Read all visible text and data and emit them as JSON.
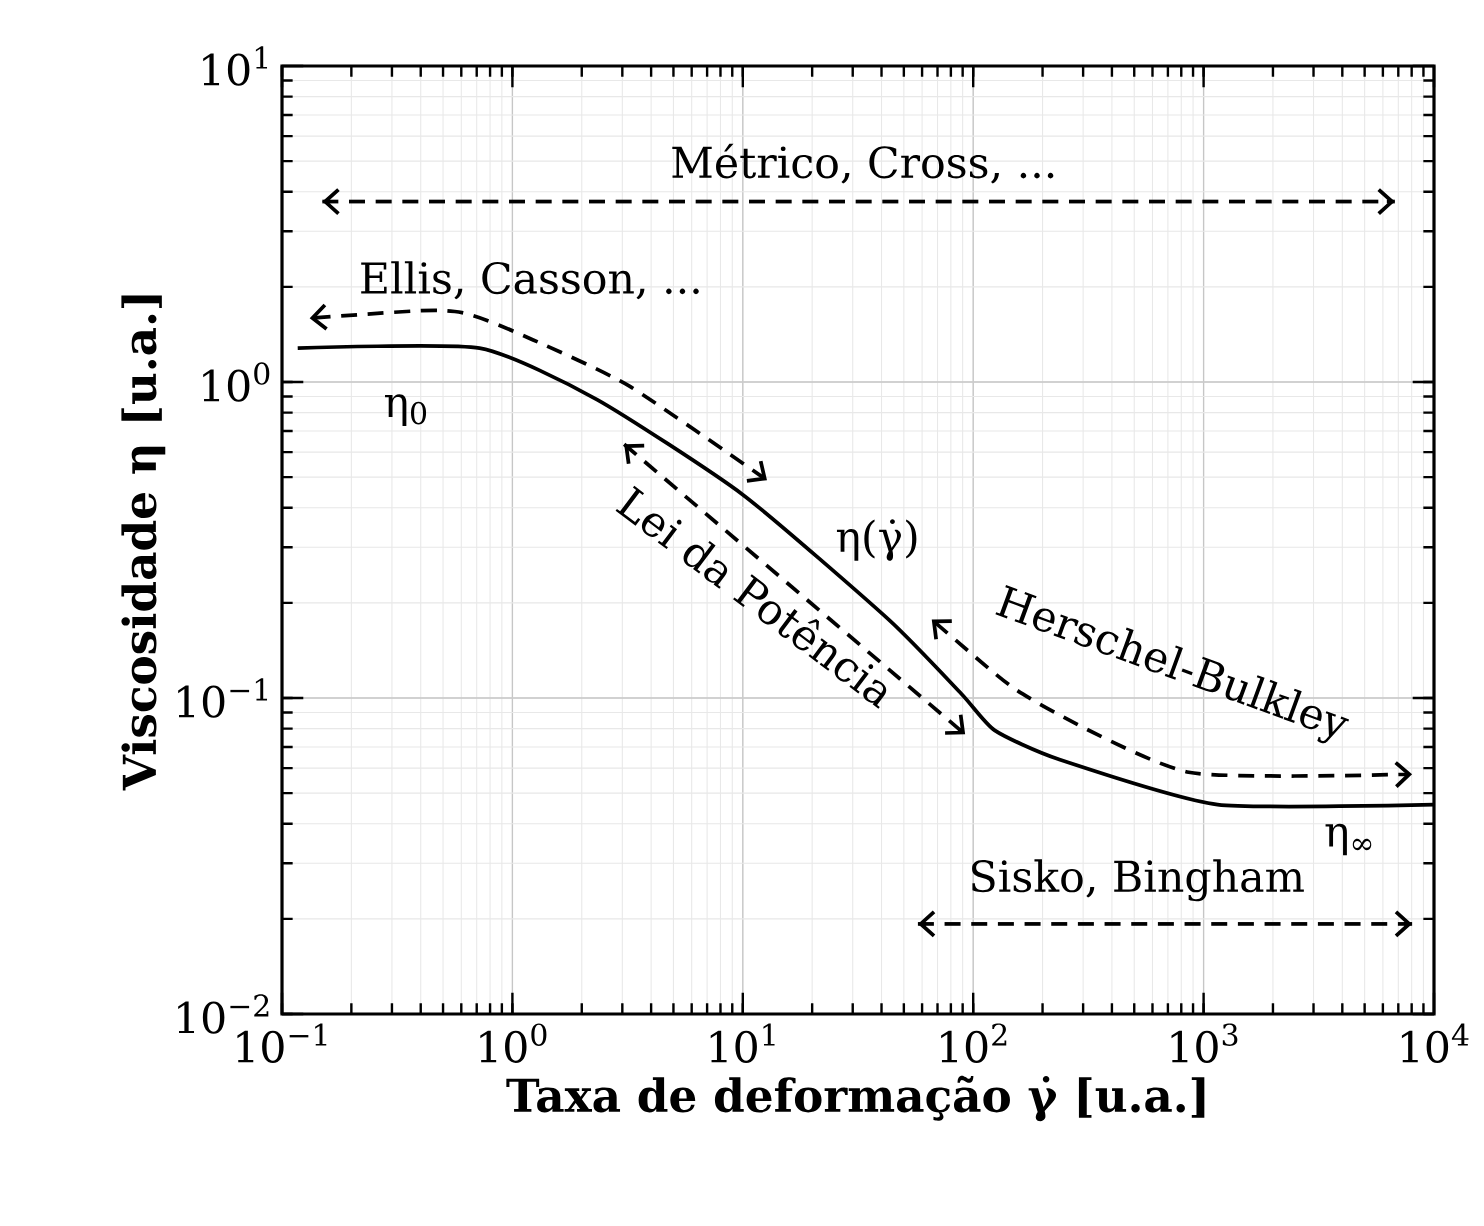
{
  "chart_data": {
    "type": "line",
    "xlabel": "Taxa de deformação γ̇ [u.a.]",
    "ylabel": "Viscosidade η [u.a.]",
    "log": "xy",
    "grid": true,
    "xlim": [
      0.1,
      10000
    ],
    "ylim": [
      0.01,
      10
    ],
    "xticks": [
      {
        "value": 0.1,
        "label": "10$^{−1}$"
      },
      {
        "value": 1,
        "label": "10$^{0}$"
      },
      {
        "value": 10,
        "label": "10$^{1}$"
      },
      {
        "value": 100,
        "label": "10$^{2}$"
      },
      {
        "value": 1000,
        "label": "10$^{3}$"
      },
      {
        "value": 10000,
        "label": "10$^{4}$"
      }
    ],
    "yticks": [
      {
        "value": 0.01,
        "label": "10$^{−2}$"
      },
      {
        "value": 0.1,
        "label": "10$^{−1}$"
      },
      {
        "value": 1,
        "label": "10$^{0}$"
      },
      {
        "value": 10,
        "label": "10$^{1}$"
      }
    ],
    "series": [
      {
        "color": "#000000",
        "line_style": "solid",
        "x": [
          0.117,
          0.72,
          2.33,
          10,
          43,
          89,
          124,
          235,
          1150,
          10000
        ],
        "values": [
          1.28,
          1.28,
          0.88,
          0.44,
          0.177,
          0.103,
          0.079,
          0.064,
          0.046,
          0.046
        ]
      }
    ],
    "annotations": [
      "Métrico, Cross, ...",
      "Ellis, Casson, ...",
      "η$_{0}$",
      "η(γ̇)",
      "Lei da Potência",
      "Herschel-Bulkley",
      "η$_{∞}$",
      "Sisko, Bingham"
    ]
  }
}
